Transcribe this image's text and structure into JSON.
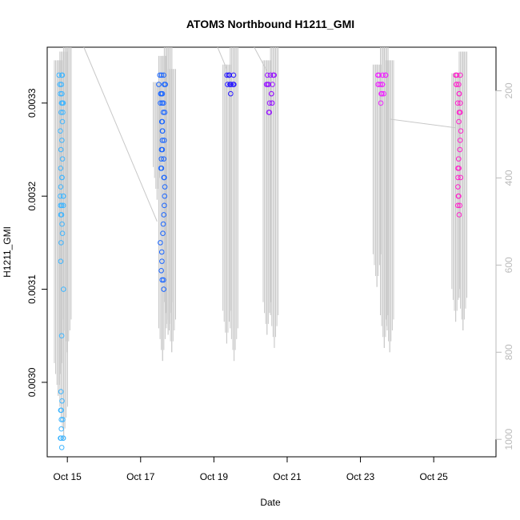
{
  "chart_data": {
    "type": "scatter",
    "title": "ATOM3 Northbound H1211_GMI",
    "xlabel": "Date",
    "ylabel": "H1211_GMI",
    "x_ticks": [
      "Oct 15",
      "Oct 17",
      "Oct 19",
      "Oct 21",
      "Oct 23",
      "Oct 25"
    ],
    "x_tick_days": [
      15,
      17,
      19,
      21,
      23,
      25
    ],
    "xlim_days": [
      14.45,
      26.7
    ],
    "y_ticks": [
      "0.0030",
      "0.0031",
      "0.0032",
      "0.0033"
    ],
    "y_tick_values": [
      0.003,
      0.0031,
      0.0032,
      0.0033
    ],
    "ylim": [
      0.00292,
      0.00336
    ],
    "y2_ticks": [
      "200",
      "400",
      "600",
      "800",
      "1000"
    ],
    "y2_tick_values": [
      200,
      400,
      600,
      800,
      1000
    ],
    "y2lim": [
      1040,
      100
    ],
    "y2_label_note": "",
    "series": [
      {
        "color": "#3fb5ff",
        "x_center": 14.85,
        "x_spread": 0.17,
        "values": [
          0.00333,
          0.00333,
          0.00333,
          0.00332,
          0.00332,
          0.00331,
          0.00331,
          0.0033,
          0.0033,
          0.0033,
          0.00329,
          0.00329,
          0.00328,
          0.00327,
          0.00326,
          0.00325,
          0.00324,
          0.00323,
          0.00322,
          0.00322,
          0.00321,
          0.0032,
          0.0032,
          0.0032,
          0.00319,
          0.00319,
          0.00319,
          0.00318,
          0.00318,
          0.00317,
          0.00316,
          0.00315,
          0.00313,
          0.0031,
          0.00305,
          0.00299,
          0.00298,
          0.00297,
          0.00297,
          0.00296,
          0.00296,
          0.00295,
          0.00294,
          0.00294,
          0.00294,
          0.00294,
          0.00293
        ]
      },
      {
        "color": "#1a66ff",
        "x_center": 17.6,
        "x_spread": 0.24,
        "values": [
          0.00333,
          0.00333,
          0.00333,
          0.00332,
          0.00332,
          0.00332,
          0.00331,
          0.00331,
          0.00331,
          0.0033,
          0.0033,
          0.0033,
          0.00329,
          0.00329,
          0.00328,
          0.00328,
          0.00327,
          0.00327,
          0.00326,
          0.00326,
          0.00325,
          0.00325,
          0.00324,
          0.00324,
          0.00323,
          0.00323,
          0.00322,
          0.00322,
          0.00321,
          0.0032,
          0.00319,
          0.00318,
          0.00317,
          0.00316,
          0.00315,
          0.00314,
          0.00313,
          0.00312,
          0.00311,
          0.00311,
          0.0031
        ]
      },
      {
        "color": "#2a1aff",
        "x_center": 19.45,
        "x_spread": 0.16,
        "values": [
          0.00333,
          0.00333,
          0.00333,
          0.00333,
          0.00332,
          0.00332,
          0.00332,
          0.00332,
          0.00332,
          0.00332,
          0.00331
        ]
      },
      {
        "color": "#9a1aff",
        "x_center": 20.55,
        "x_spread": 0.2,
        "values": [
          0.00333,
          0.00333,
          0.00333,
          0.00333,
          0.00332,
          0.00332,
          0.00332,
          0.00332,
          0.00331,
          0.00331,
          0.0033,
          0.0033,
          0.0033,
          0.00329,
          0.00329,
          0.00329
        ]
      },
      {
        "color": "#ee22ff",
        "x_center": 23.6,
        "x_spread": 0.22,
        "values": [
          0.00333,
          0.00333,
          0.00333,
          0.00333,
          0.00333,
          0.00332,
          0.00332,
          0.00332,
          0.00332,
          0.00332,
          0.00331,
          0.00331,
          0.00331,
          0.00331,
          0.0033
        ]
      },
      {
        "color": "#ff22cc",
        "x_center": 25.7,
        "x_spread": 0.17,
        "values": [
          0.00333,
          0.00333,
          0.00333,
          0.00332,
          0.00332,
          0.00332,
          0.00331,
          0.00331,
          0.0033,
          0.0033,
          0.00329,
          0.00329,
          0.00328,
          0.00327,
          0.00326,
          0.00325,
          0.00324,
          0.00323,
          0.00323,
          0.00322,
          0.00322,
          0.00321,
          0.0032,
          0.0032,
          0.00319,
          0.00319,
          0.00318
        ]
      }
    ],
    "pressure_trace": {
      "color": "#c8c8c8",
      "segments": [
        {
          "day": 14.75,
          "top": 130,
          "bottom": 900
        },
        {
          "day": 14.9,
          "top": 110,
          "bottom": 1000
        },
        {
          "day": 15.0,
          "top": 90,
          "bottom": 800
        },
        {
          "day": 17.45,
          "top": 180,
          "bottom": 450
        },
        {
          "day": 17.6,
          "top": 120,
          "bottom": 820
        },
        {
          "day": 17.75,
          "top": 100,
          "bottom": 760
        },
        {
          "day": 17.85,
          "top": 150,
          "bottom": 800
        },
        {
          "day": 19.35,
          "top": 140,
          "bottom": 780
        },
        {
          "day": 19.55,
          "top": 100,
          "bottom": 820
        },
        {
          "day": 20.45,
          "top": 130,
          "bottom": 760
        },
        {
          "day": 20.65,
          "top": 100,
          "bottom": 790
        },
        {
          "day": 23.45,
          "top": 140,
          "bottom": 650
        },
        {
          "day": 23.65,
          "top": 90,
          "bottom": 790
        },
        {
          "day": 23.8,
          "top": 130,
          "bottom": 800
        },
        {
          "day": 25.6,
          "top": 160,
          "bottom": 730
        },
        {
          "day": 25.8,
          "top": 110,
          "bottom": 750
        }
      ],
      "connectors": [
        {
          "from_day": 15.45,
          "from_p": 100,
          "to_day": 17.45,
          "to_p": 500
        },
        {
          "from_day": 19.1,
          "from_p": 100,
          "to_day": 19.35,
          "to_p": 150
        },
        {
          "from_day": 20.1,
          "from_p": 100,
          "to_day": 20.45,
          "to_p": 155
        },
        {
          "from_day": 23.8,
          "from_p": 265,
          "to_day": 25.6,
          "to_p": 285
        }
      ]
    }
  }
}
